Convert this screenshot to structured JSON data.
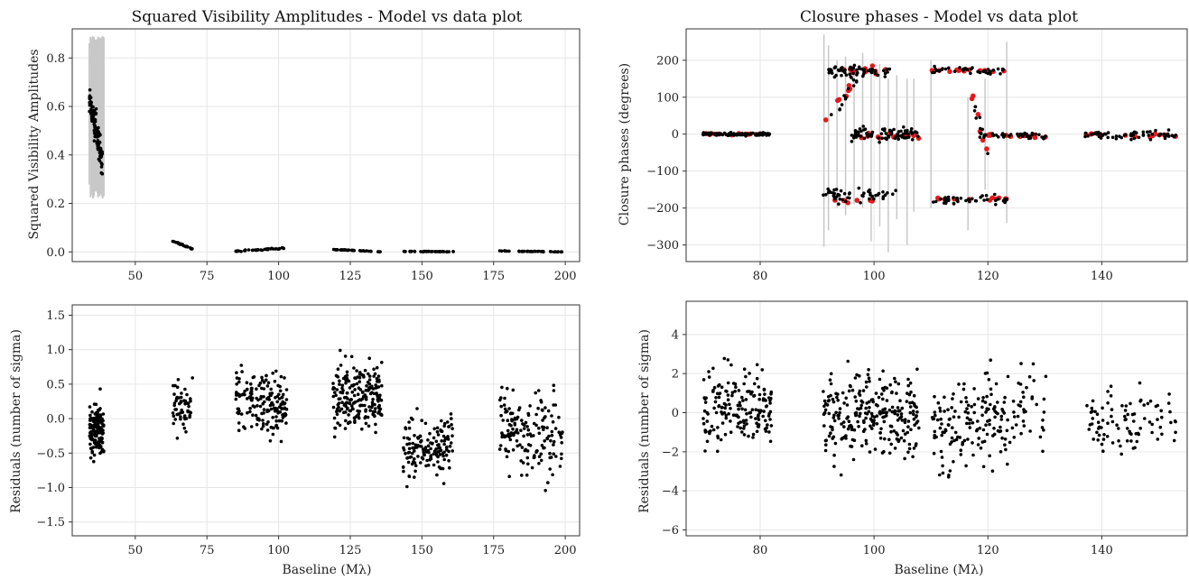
{
  "colors": {
    "data_points": "#000000",
    "model_points": "#e31a1c",
    "error_bars": "#c8c8c8",
    "grid": "#e6e6e6",
    "frame": "#333333"
  },
  "chart_data": [
    {
      "id": "vis2",
      "type": "scatter",
      "title": "Squared Visibility Amplitudes - Model vs data plot",
      "xlabel": "",
      "ylabel": "Squared Visibility Amplitudes",
      "xlim": [
        28,
        205
      ],
      "ylim": [
        -0.04,
        0.92
      ],
      "xticks": [
        50,
        75,
        100,
        125,
        150,
        175,
        200
      ],
      "yticks": [
        0.0,
        0.2,
        0.4,
        0.6,
        0.8
      ],
      "ytick_decimals": 1,
      "grid": true,
      "error_bars": {
        "x_range": [
          34,
          39
        ],
        "band": [
          0.22,
          0.89
        ],
        "color": "error_bars"
      },
      "series": [
        {
          "color": "data_points",
          "groups": [
            {
              "x": [
                34,
                38.5
              ],
              "y": [
                0.62,
                0.38
              ],
              "n": 120,
              "spread": 0.05
            },
            {
              "x": [
                63,
                70
              ],
              "y": [
                0.045,
                0.012
              ],
              "n": 22,
              "spread": 0.002
            },
            {
              "x": [
                85,
                102
              ],
              "y": [
                0.003,
                0.015
              ],
              "n": 40,
              "spread": 0.002
            },
            {
              "x": [
                119,
                136
              ],
              "y": [
                0.01,
                0.001
              ],
              "n": 40,
              "spread": 0.001
            },
            {
              "x": [
                143,
                161
              ],
              "y": [
                0.002,
                0.001
              ],
              "n": 40,
              "spread": 0.0008
            },
            {
              "x": [
                177,
                199
              ],
              "y": [
                0.004,
                0.0
              ],
              "n": 40,
              "spread": 0.0008
            }
          ]
        }
      ]
    },
    {
      "id": "cp",
      "type": "scatter",
      "title": "Closure phases - Model vs data plot",
      "xlabel": "",
      "ylabel": "Closure phases (degrees)",
      "xlim": [
        67,
        155
      ],
      "ylim": [
        -345,
        285
      ],
      "xticks": [
        80,
        100,
        120,
        140
      ],
      "yticks": [
        -300,
        -200,
        -100,
        0,
        100,
        200
      ],
      "ytick_decimals": 0,
      "grid": true,
      "error_bar_segments": [
        {
          "x": 91.2,
          "y1": -305,
          "y2": 270
        },
        {
          "x": 92.0,
          "y1": -260,
          "y2": 240
        },
        {
          "x": 93.5,
          "y1": -200,
          "y2": 200
        },
        {
          "x": 95.0,
          "y1": -220,
          "y2": 210
        },
        {
          "x": 96.5,
          "y1": -190,
          "y2": 190
        },
        {
          "x": 98.0,
          "y1": -200,
          "y2": 220
        },
        {
          "x": 99.5,
          "y1": -290,
          "y2": 170
        },
        {
          "x": 101.0,
          "y1": -250,
          "y2": 190
        },
        {
          "x": 102.5,
          "y1": -320,
          "y2": 150
        },
        {
          "x": 104.0,
          "y1": -230,
          "y2": 160
        },
        {
          "x": 105.8,
          "y1": -300,
          "y2": 150
        },
        {
          "x": 107.0,
          "y1": -210,
          "y2": 150
        },
        {
          "x": 116.5,
          "y1": -260,
          "y2": 100
        },
        {
          "x": 123.3,
          "y1": -240,
          "y2": 250
        },
        {
          "x": 110.0,
          "y1": -200,
          "y2": 200
        },
        {
          "x": 119.5,
          "y1": -150,
          "y2": 150
        }
      ],
      "series": [
        {
          "color": "model_points",
          "groups": [
            {
              "x": [
                70,
                82
              ],
              "y": [
                0,
                0
              ],
              "n": 14,
              "spread": 2
            },
            {
              "x": [
                92,
                103
              ],
              "y": [
                172,
                172
              ],
              "n": 14,
              "spread": 6
            },
            {
              "x": [
                97,
                108
              ],
              "y": [
                -3,
                -3
              ],
              "n": 14,
              "spread": 6
            },
            {
              "x": [
                93,
                100
              ],
              "y": [
                -178,
                -178
              ],
              "n": 8,
              "spread": 4
            },
            {
              "x": [
                110,
                123.5
              ],
              "y": [
                173,
                173
              ],
              "n": 12,
              "spread": 3
            },
            {
              "x": [
                110,
                123.5
              ],
              "y": [
                -176,
                -176
              ],
              "n": 12,
              "spread": 3
            },
            {
              "x": [
                118.5,
                130.5
              ],
              "y": [
                -5,
                -5
              ],
              "n": 12,
              "spread": 4
            },
            {
              "x": [
                137,
                153
              ],
              "y": [
                -3,
                -3
              ],
              "n": 14,
              "spread": 5
            },
            {
              "x": [
                91,
                97
              ],
              "y": [
                30,
                155
              ],
              "n": 7,
              "spread": 12
            },
            {
              "x": [
                117,
                120
              ],
              "y": [
                120,
                -60
              ],
              "n": 6,
              "spread": 10
            }
          ]
        },
        {
          "color": "data_points",
          "groups": [
            {
              "x": [
                70,
                82
              ],
              "y": [
                0,
                0
              ],
              "n": 90,
              "spread": 3
            },
            {
              "x": [
                92,
                103
              ],
              "y": [
                170,
                170
              ],
              "n": 60,
              "spread": 12
            },
            {
              "x": [
                96,
                108
              ],
              "y": [
                0,
                0
              ],
              "n": 80,
              "spread": 14
            },
            {
              "x": [
                91,
                104
              ],
              "y": [
                -165,
                -165
              ],
              "n": 50,
              "spread": 14
            },
            {
              "x": [
                110,
                123.5
              ],
              "y": [
                172,
                172
              ],
              "n": 40,
              "spread": 8
            },
            {
              "x": [
                110,
                123.5
              ],
              "y": [
                -178,
                -178
              ],
              "n": 40,
              "spread": 8
            },
            {
              "x": [
                118.5,
                130.5
              ],
              "y": [
                -4,
                -4
              ],
              "n": 40,
              "spread": 8
            },
            {
              "x": [
                137,
                153
              ],
              "y": [
                -2,
                -2
              ],
              "n": 60,
              "spread": 8
            },
            {
              "x": [
                91,
                97
              ],
              "y": [
                20,
                150
              ],
              "n": 12,
              "spread": 20
            },
            {
              "x": [
                117,
                120
              ],
              "y": [
                120,
                -60
              ],
              "n": 10,
              "spread": 20
            }
          ]
        }
      ]
    },
    {
      "id": "res_vis2",
      "type": "scatter",
      "title": "",
      "xlabel": "Baseline (Mλ)",
      "ylabel": "Residuals (number of sigma)",
      "xlim": [
        28,
        205
      ],
      "ylim": [
        -1.7,
        1.65
      ],
      "xticks": [
        50,
        75,
        100,
        125,
        150,
        175,
        200
      ],
      "yticks": [
        -1.5,
        -1.0,
        -0.5,
        0.0,
        0.5,
        1.0,
        1.5
      ],
      "ytick_decimals": 1,
      "grid": true,
      "series": [
        {
          "color": "data_points",
          "groups": [
            {
              "x": [
                34,
                39
              ],
              "y": [
                -0.15,
                -0.15
              ],
              "n": 140,
              "spread": 0.28
            },
            {
              "x": [
                63,
                70
              ],
              "y": [
                0.15,
                0.15
              ],
              "n": 55,
              "spread": 0.28
            },
            {
              "x": [
                85,
                103
              ],
              "y": [
                0.35,
                0.15
              ],
              "n": 170,
              "spread": 0.3
            },
            {
              "x": [
                119,
                136
              ],
              "y": [
                0.35,
                0.35
              ],
              "n": 210,
              "spread": 0.35
            },
            {
              "x": [
                143,
                161
              ],
              "y": [
                -0.5,
                -0.35
              ],
              "n": 150,
              "spread": 0.3
            },
            {
              "x": [
                177,
                199
              ],
              "y": [
                -0.15,
                -0.35
              ],
              "n": 160,
              "spread": 0.42
            }
          ]
        }
      ]
    },
    {
      "id": "res_cp",
      "type": "scatter",
      "title": "",
      "xlabel": "Baseline (Mλ)",
      "ylabel": "Residuals (number of sigma)",
      "xlim": [
        67,
        155
      ],
      "ylim": [
        -6.3,
        5.7
      ],
      "xticks": [
        80,
        100,
        120,
        140
      ],
      "yticks": [
        -6,
        -4,
        -2,
        0,
        2,
        4
      ],
      "ytick_decimals": 0,
      "grid": true,
      "series": [
        {
          "color": "data_points",
          "groups": [
            {
              "x": [
                70,
                82
              ],
              "y": [
                0.3,
                0.3
              ],
              "n": 170,
              "spread": 1.4
            },
            {
              "x": [
                91,
                108
              ],
              "y": [
                -0.2,
                -0.2
              ],
              "n": 260,
              "spread": 1.5
            },
            {
              "x": [
                110,
                123.5
              ],
              "y": [
                -0.5,
                -0.5
              ],
              "n": 130,
              "spread": 1.6
            },
            {
              "x": [
                118.5,
                130.5
              ],
              "y": [
                0.2,
                0.2
              ],
              "n": 60,
              "spread": 1.6
            },
            {
              "x": [
                137,
                153
              ],
              "y": [
                -0.5,
                -0.5
              ],
              "n": 90,
              "spread": 1.0
            }
          ]
        }
      ]
    }
  ]
}
